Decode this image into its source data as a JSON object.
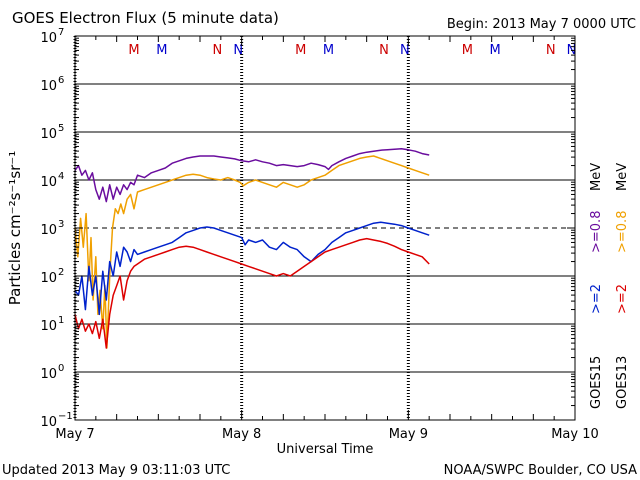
{
  "chart_data": {
    "type": "line",
    "title": "GOES Electron Flux (5 minute data)",
    "begin": "Begin: 2013 May 7 0000 UTC",
    "xlabel": "Universal Time",
    "ylabel": "Particles cm⁻²s⁻¹sr⁻¹",
    "updated": "Updated 2013 May  9 03:11:03 UTC",
    "credit": "NOAA/SWPC Boulder, CO USA",
    "x_ticks": [
      {
        "hour": 0,
        "label": "May 7"
      },
      {
        "hour": 24,
        "label": "May 8"
      },
      {
        "hour": 48,
        "label": "May 9"
      },
      {
        "hour": 72,
        "label": "May 10"
      }
    ],
    "xlim_hours": [
      0,
      72
    ],
    "yscale": "log",
    "ylim_exp": [
      -1,
      7
    ],
    "y_ticks": [
      {
        "exp": 7,
        "label": "7"
      },
      {
        "exp": 6,
        "label": "6"
      },
      {
        "exp": 5,
        "label": "5"
      },
      {
        "exp": 4,
        "label": "4"
      },
      {
        "exp": 3,
        "label": "3"
      },
      {
        "exp": 2,
        "label": "2"
      },
      {
        "exp": 1,
        "label": "1"
      },
      {
        "exp": 0,
        "label": "0"
      },
      {
        "exp": -1,
        "label": "−1"
      }
    ],
    "ytick_base": "10",
    "threshold_exp": 3,
    "midnight_hours": [
      0,
      24,
      48
    ],
    "mn_markers": [
      {
        "hour": 8.5,
        "label": "M",
        "color": "#cc0000"
      },
      {
        "hour": 12.5,
        "label": "M",
        "color": "#0000cc"
      },
      {
        "hour": 20.5,
        "label": "N",
        "color": "#cc0000"
      },
      {
        "hour": 23.5,
        "label": "N",
        "color": "#0000cc"
      },
      {
        "hour": 32.5,
        "label": "M",
        "color": "#cc0000"
      },
      {
        "hour": 36.5,
        "label": "M",
        "color": "#0000cc"
      },
      {
        "hour": 44.5,
        "label": "N",
        "color": "#cc0000"
      },
      {
        "hour": 47.5,
        "label": "N",
        "color": "#0000cc"
      },
      {
        "hour": 56.5,
        "label": "M",
        "color": "#cc0000"
      },
      {
        "hour": 60.5,
        "label": "M",
        "color": "#0000cc"
      },
      {
        "hour": 68.5,
        "label": "N",
        "color": "#cc0000"
      },
      {
        "hour": 71.5,
        "label": "N",
        "color": "#0000cc"
      }
    ],
    "legend": {
      "goes15": "GOES15",
      "goes13": "GOES13",
      "ge2_15": ">=2",
      "ge08_15": ">=0.8",
      "ge2_13": ">=2",
      "ge08_13": ">=0.8",
      "unit15": "MeV",
      "unit13": "MeV"
    },
    "series": [
      {
        "name": "GOES15 >=0.8 MeV",
        "color": "#6a0d9e",
        "points": [
          [
            0,
            4.2
          ],
          [
            0.5,
            4.3
          ],
          [
            1,
            4.1
          ],
          [
            1.5,
            4.2
          ],
          [
            2,
            4.0
          ],
          [
            2.5,
            4.15
          ],
          [
            3,
            3.8
          ],
          [
            3.5,
            3.6
          ],
          [
            4,
            3.85
          ],
          [
            4.5,
            3.55
          ],
          [
            5,
            3.9
          ],
          [
            5.5,
            3.6
          ],
          [
            6,
            3.85
          ],
          [
            6.5,
            3.7
          ],
          [
            7,
            3.9
          ],
          [
            7.5,
            3.8
          ],
          [
            8,
            3.95
          ],
          [
            8.5,
            3.9
          ],
          [
            9,
            4.1
          ],
          [
            10,
            4.05
          ],
          [
            11,
            4.15
          ],
          [
            12,
            4.2
          ],
          [
            13,
            4.25
          ],
          [
            14,
            4.35
          ],
          [
            15,
            4.4
          ],
          [
            16,
            4.45
          ],
          [
            17,
            4.48
          ],
          [
            18,
            4.5
          ],
          [
            19,
            4.5
          ],
          [
            20,
            4.5
          ],
          [
            21,
            4.48
          ],
          [
            22,
            4.46
          ],
          [
            23,
            4.44
          ],
          [
            24,
            4.4
          ],
          [
            25,
            4.38
          ],
          [
            26,
            4.42
          ],
          [
            27,
            4.38
          ],
          [
            28,
            4.35
          ],
          [
            29,
            4.3
          ],
          [
            30,
            4.32
          ],
          [
            31,
            4.3
          ],
          [
            32,
            4.28
          ],
          [
            33,
            4.3
          ],
          [
            34,
            4.35
          ],
          [
            35,
            4.32
          ],
          [
            36,
            4.28
          ],
          [
            36.5,
            4.22
          ],
          [
            37,
            4.3
          ],
          [
            38,
            4.38
          ],
          [
            39,
            4.45
          ],
          [
            40,
            4.5
          ],
          [
            41,
            4.55
          ],
          [
            42,
            4.58
          ],
          [
            43,
            4.6
          ],
          [
            44,
            4.62
          ],
          [
            45,
            4.63
          ],
          [
            46,
            4.64
          ],
          [
            47,
            4.65
          ],
          [
            48,
            4.63
          ],
          [
            49,
            4.6
          ],
          [
            50,
            4.55
          ],
          [
            51,
            4.52
          ]
        ]
      },
      {
        "name": "GOES13 >=0.8 MeV",
        "color": "#f0a000",
        "points": [
          [
            0,
            3.0
          ],
          [
            0.4,
            2.4
          ],
          [
            0.8,
            3.2
          ],
          [
            1.2,
            2.6
          ],
          [
            1.6,
            3.3
          ],
          [
            2,
            1.9
          ],
          [
            2.3,
            2.8
          ],
          [
            2.6,
            1.5
          ],
          [
            3,
            2.4
          ],
          [
            3.3,
            1.2
          ],
          [
            3.6,
            1.7
          ],
          [
            4,
            0.9
          ],
          [
            4.3,
            1.8
          ],
          [
            4.6,
            0.5
          ],
          [
            5,
            2.0
          ],
          [
            5.4,
            3.0
          ],
          [
            5.8,
            3.4
          ],
          [
            6.2,
            3.3
          ],
          [
            6.6,
            3.5
          ],
          [
            7,
            3.3
          ],
          [
            7.5,
            3.6
          ],
          [
            8,
            3.7
          ],
          [
            8.5,
            3.4
          ],
          [
            9,
            3.75
          ],
          [
            10,
            3.8
          ],
          [
            11,
            3.85
          ],
          [
            12,
            3.9
          ],
          [
            13,
            3.95
          ],
          [
            14,
            4.0
          ],
          [
            15,
            4.05
          ],
          [
            16,
            4.1
          ],
          [
            17,
            4.12
          ],
          [
            18,
            4.1
          ],
          [
            19,
            4.05
          ],
          [
            20,
            4.02
          ],
          [
            21,
            4.0
          ],
          [
            22,
            4.05
          ],
          [
            23,
            4.0
          ],
          [
            23.8,
            3.95
          ],
          [
            24.2,
            3.88
          ],
          [
            25,
            3.95
          ],
          [
            26,
            4.0
          ],
          [
            27,
            3.95
          ],
          [
            28,
            3.9
          ],
          [
            29,
            3.85
          ],
          [
            30,
            3.95
          ],
          [
            31,
            3.9
          ],
          [
            32,
            3.85
          ],
          [
            33,
            3.9
          ],
          [
            34,
            4.0
          ],
          [
            35,
            4.05
          ],
          [
            36,
            4.1
          ],
          [
            37,
            4.2
          ],
          [
            38,
            4.3
          ],
          [
            39,
            4.35
          ],
          [
            40,
            4.4
          ],
          [
            41,
            4.45
          ],
          [
            42,
            4.48
          ],
          [
            43,
            4.5
          ],
          [
            44,
            4.45
          ],
          [
            45,
            4.4
          ],
          [
            46,
            4.35
          ],
          [
            47,
            4.3
          ],
          [
            48,
            4.25
          ],
          [
            49,
            4.2
          ],
          [
            50,
            4.15
          ],
          [
            51,
            4.1
          ]
        ]
      },
      {
        "name": "GOES15 >=2 MeV",
        "color": "#0022cc",
        "points": [
          [
            0,
            1.7
          ],
          [
            0.5,
            1.6
          ],
          [
            1,
            2.0
          ],
          [
            1.5,
            1.3
          ],
          [
            2,
            2.2
          ],
          [
            2.5,
            1.6
          ],
          [
            3,
            2.0
          ],
          [
            3.5,
            1.2
          ],
          [
            4,
            2.1
          ],
          [
            4.5,
            1.5
          ],
          [
            5,
            2.3
          ],
          [
            5.5,
            2.0
          ],
          [
            6,
            2.5
          ],
          [
            6.5,
            2.2
          ],
          [
            7,
            2.6
          ],
          [
            7.5,
            2.5
          ],
          [
            8,
            2.3
          ],
          [
            8.5,
            2.55
          ],
          [
            9,
            2.45
          ],
          [
            10,
            2.5
          ],
          [
            11,
            2.55
          ],
          [
            12,
            2.6
          ],
          [
            13,
            2.65
          ],
          [
            14,
            2.7
          ],
          [
            15,
            2.8
          ],
          [
            16,
            2.9
          ],
          [
            17,
            2.95
          ],
          [
            18,
            3.0
          ],
          [
            19,
            3.02
          ],
          [
            20,
            3.0
          ],
          [
            21,
            2.95
          ],
          [
            22,
            2.9
          ],
          [
            23,
            2.85
          ],
          [
            24,
            2.8
          ],
          [
            24.5,
            2.65
          ],
          [
            25,
            2.75
          ],
          [
            26,
            2.7
          ],
          [
            27,
            2.75
          ],
          [
            28,
            2.6
          ],
          [
            29,
            2.55
          ],
          [
            30,
            2.7
          ],
          [
            31,
            2.6
          ],
          [
            32,
            2.55
          ],
          [
            33,
            2.4
          ],
          [
            34,
            2.3
          ],
          [
            35,
            2.45
          ],
          [
            36,
            2.55
          ],
          [
            37,
            2.7
          ],
          [
            38,
            2.8
          ],
          [
            39,
            2.9
          ],
          [
            40,
            2.95
          ],
          [
            41,
            3.0
          ],
          [
            42,
            3.05
          ],
          [
            43,
            3.1
          ],
          [
            44,
            3.12
          ],
          [
            45,
            3.1
          ],
          [
            46,
            3.08
          ],
          [
            47,
            3.05
          ],
          [
            48,
            3.0
          ],
          [
            49,
            2.95
          ],
          [
            50,
            2.9
          ],
          [
            51,
            2.85
          ]
        ]
      },
      {
        "name": "GOES13 >=2 MeV",
        "color": "#dd0000",
        "points": [
          [
            0,
            1.2
          ],
          [
            0.5,
            0.9
          ],
          [
            1,
            1.1
          ],
          [
            1.5,
            0.85
          ],
          [
            2,
            1.0
          ],
          [
            2.5,
            0.8
          ],
          [
            3,
            1.05
          ],
          [
            3.5,
            0.7
          ],
          [
            4,
            1.1
          ],
          [
            4.5,
            0.5
          ],
          [
            5,
            1.2
          ],
          [
            5.5,
            1.6
          ],
          [
            6,
            1.8
          ],
          [
            6.5,
            2.0
          ],
          [
            7,
            1.5
          ],
          [
            7.5,
            1.9
          ],
          [
            8,
            2.1
          ],
          [
            8.5,
            2.2
          ],
          [
            9,
            2.25
          ],
          [
            10,
            2.35
          ],
          [
            11,
            2.4
          ],
          [
            12,
            2.45
          ],
          [
            13,
            2.5
          ],
          [
            14,
            2.55
          ],
          [
            15,
            2.6
          ],
          [
            16,
            2.62
          ],
          [
            17,
            2.6
          ],
          [
            18,
            2.55
          ],
          [
            19,
            2.5
          ],
          [
            20,
            2.45
          ],
          [
            21,
            2.4
          ],
          [
            22,
            2.35
          ],
          [
            23,
            2.3
          ],
          [
            24,
            2.25
          ],
          [
            25,
            2.2
          ],
          [
            26,
            2.15
          ],
          [
            27,
            2.1
          ],
          [
            28,
            2.05
          ],
          [
            29,
            2.0
          ],
          [
            30,
            2.05
          ],
          [
            31,
            2.0
          ],
          [
            32,
            2.1
          ],
          [
            33,
            2.2
          ],
          [
            34,
            2.3
          ],
          [
            35,
            2.4
          ],
          [
            36,
            2.5
          ],
          [
            37,
            2.55
          ],
          [
            38,
            2.6
          ],
          [
            39,
            2.65
          ],
          [
            40,
            2.7
          ],
          [
            41,
            2.75
          ],
          [
            42,
            2.78
          ],
          [
            43,
            2.75
          ],
          [
            44,
            2.72
          ],
          [
            45,
            2.68
          ],
          [
            46,
            2.62
          ],
          [
            47,
            2.55
          ],
          [
            48,
            2.5
          ],
          [
            49,
            2.45
          ],
          [
            50,
            2.4
          ],
          [
            51,
            2.25
          ]
        ]
      }
    ]
  }
}
